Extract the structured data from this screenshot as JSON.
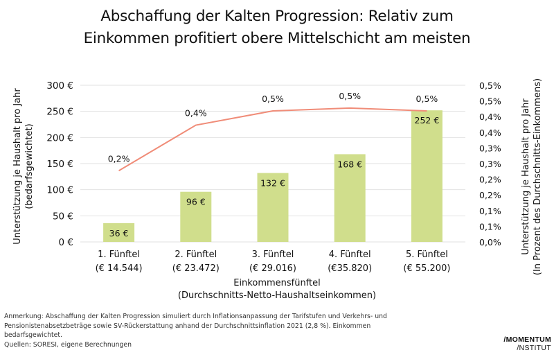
{
  "title": {
    "line1": "Abschaffung der Kalten Progression: Relativ zum",
    "line2": "Einkommen profitiert obere Mittelschicht am meisten"
  },
  "chart_data": {
    "type": "bar",
    "title": "Abschaffung der Kalten Progression: Relativ zum Einkommen profitiert obere Mittelschicht am meisten",
    "categories": [
      "1. Fünftel",
      "2. Fünftel",
      "3. Fünftel",
      "4. Fünftel",
      "5. Fünftel"
    ],
    "category_sublabels": [
      "(€ 14.544)",
      "(€ 23.472)",
      "(€ 29.016)",
      "(€35.820)",
      "(€ 55.200)"
    ],
    "series": [
      {
        "name": "Unterstützung je Haushalt pro Jahr (€)",
        "type": "bar",
        "axis": "left",
        "color": "#d0de8c",
        "values": [
          36,
          96,
          132,
          168,
          252
        ],
        "data_labels": [
          "36 €",
          "96 €",
          "132 €",
          "168 €",
          "252 €"
        ]
      },
      {
        "name": "Unterstützung in Prozent des Durchschnitts-Einkommens",
        "type": "line",
        "axis": "right",
        "color": "#f08c78",
        "values": [
          0.25,
          0.41,
          0.46,
          0.47,
          0.46
        ],
        "data_labels": [
          "0,2%",
          "0,4%",
          "0,5%",
          "0,5%",
          "0,5%"
        ]
      }
    ],
    "xlabel": "Einkommensfünftel",
    "xlabel_sub": "(Durchschnitts-Netto-Haushaltseinkommen)",
    "ylabel": "Unterstützung je Haushalt pro Jahr",
    "ylabel_sub": "(bedarfsgewichtet)",
    "y2label": "Unterstützung je Haushalt pro Jahr",
    "y2label_sub": "(In Prozent des Durchschnitts-Einkommens)",
    "ylim": [
      0,
      300
    ],
    "yticks": [
      0,
      50,
      100,
      150,
      200,
      250,
      300
    ],
    "ytick_labels": [
      "0 €",
      "50 €",
      "100 €",
      "150 €",
      "200 €",
      "250 €",
      "300 €"
    ],
    "y2lim": [
      0,
      0.5
    ],
    "y2ticks": [
      0,
      0.05,
      0.1,
      0.15,
      0.2,
      0.25,
      0.3,
      0.35,
      0.4,
      0.45,
      0.5
    ],
    "y2tick_labels": [
      "0,0%",
      "0,1%",
      "0,1%",
      "0,2%",
      "0,2%",
      "0,3%",
      "0,3%",
      "0,4%",
      "0,4%",
      "0,5%",
      "0,5%"
    ],
    "grid": true,
    "legend": "none"
  },
  "footnote": {
    "lines": [
      "Anmerkung: Abschaffung der Kalten Progression simuliert durch Inflationsanpassung der Tarifstufen und Verkehrs- und",
      "Pensionistenabsetzbeträge sowie SV-Rückerstattung anhand der Durchschnittsinflation 2021 (2,8 %). Einkommen",
      "bedarfsgewichtet.",
      "Quellen: SORESI, eigene Berechnungen"
    ]
  },
  "logo": {
    "line1": "/MOMENTUM",
    "line2": "/NSTITUT"
  }
}
